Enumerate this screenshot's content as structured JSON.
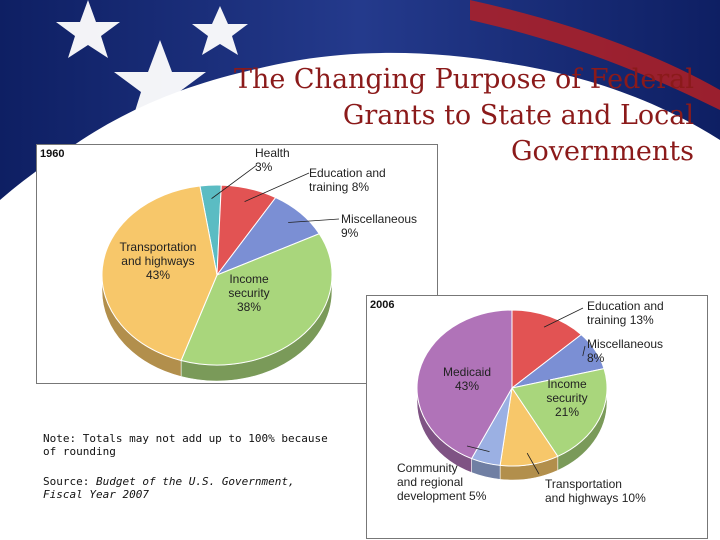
{
  "title_lines": [
    "The Changing Purpose of Federal",
    "Grants to State and Local",
    "Governments"
  ],
  "note": "Note: Totals may not add up to 100% because of rounding",
  "source": {
    "prefix": "Source: ",
    "line1_italic": "Budget of the U.S. Government,",
    "line2_italic": "Fiscal Year 2007"
  },
  "colors": {
    "title": "#8b1a1a",
    "health": "#5bbcc3",
    "education": "#e25353",
    "misc": "#7b8fd4",
    "income": "#a9d67c",
    "transport": "#f7c76a",
    "medicaid": "#b073b8",
    "community": "#9bb0e3"
  },
  "chart_data": [
    {
      "type": "pie",
      "title": "1960",
      "slices": [
        {
          "label_lines": [
            "Health",
            "3%"
          ],
          "value": 3,
          "color": "#5bbcc3"
        },
        {
          "label_lines": [
            "Education and",
            "training  8%"
          ],
          "value": 8,
          "color": "#e25353"
        },
        {
          "label_lines": [
            "Miscellaneous",
            "9%"
          ],
          "value": 9,
          "color": "#7b8fd4"
        },
        {
          "label_lines": [
            "Income",
            "security",
            "38%"
          ],
          "value": 38,
          "color": "#a9d67c"
        },
        {
          "label_lines": [
            "Transportation",
            "and highways",
            "43%"
          ],
          "value": 43,
          "color": "#f7c76a"
        }
      ]
    },
    {
      "type": "pie",
      "title": "2006",
      "slices": [
        {
          "label_lines": [
            "Education and",
            "training 13%"
          ],
          "value": 13,
          "color": "#e25353"
        },
        {
          "label_lines": [
            "Miscellaneous",
            "8%"
          ],
          "value": 8,
          "color": "#7b8fd4"
        },
        {
          "label_lines": [
            "Income",
            "security",
            "21%"
          ],
          "value": 21,
          "color": "#a9d67c"
        },
        {
          "label_lines": [
            "Transportation",
            "and highways  10%"
          ],
          "value": 10,
          "color": "#f7c76a"
        },
        {
          "label_lines": [
            "Community",
            "and regional",
            "development  5%"
          ],
          "value": 5,
          "color": "#9bb0e3"
        },
        {
          "label_lines": [
            "Medicaid",
            "43%"
          ],
          "value": 43,
          "color": "#b073b8"
        }
      ]
    }
  ]
}
